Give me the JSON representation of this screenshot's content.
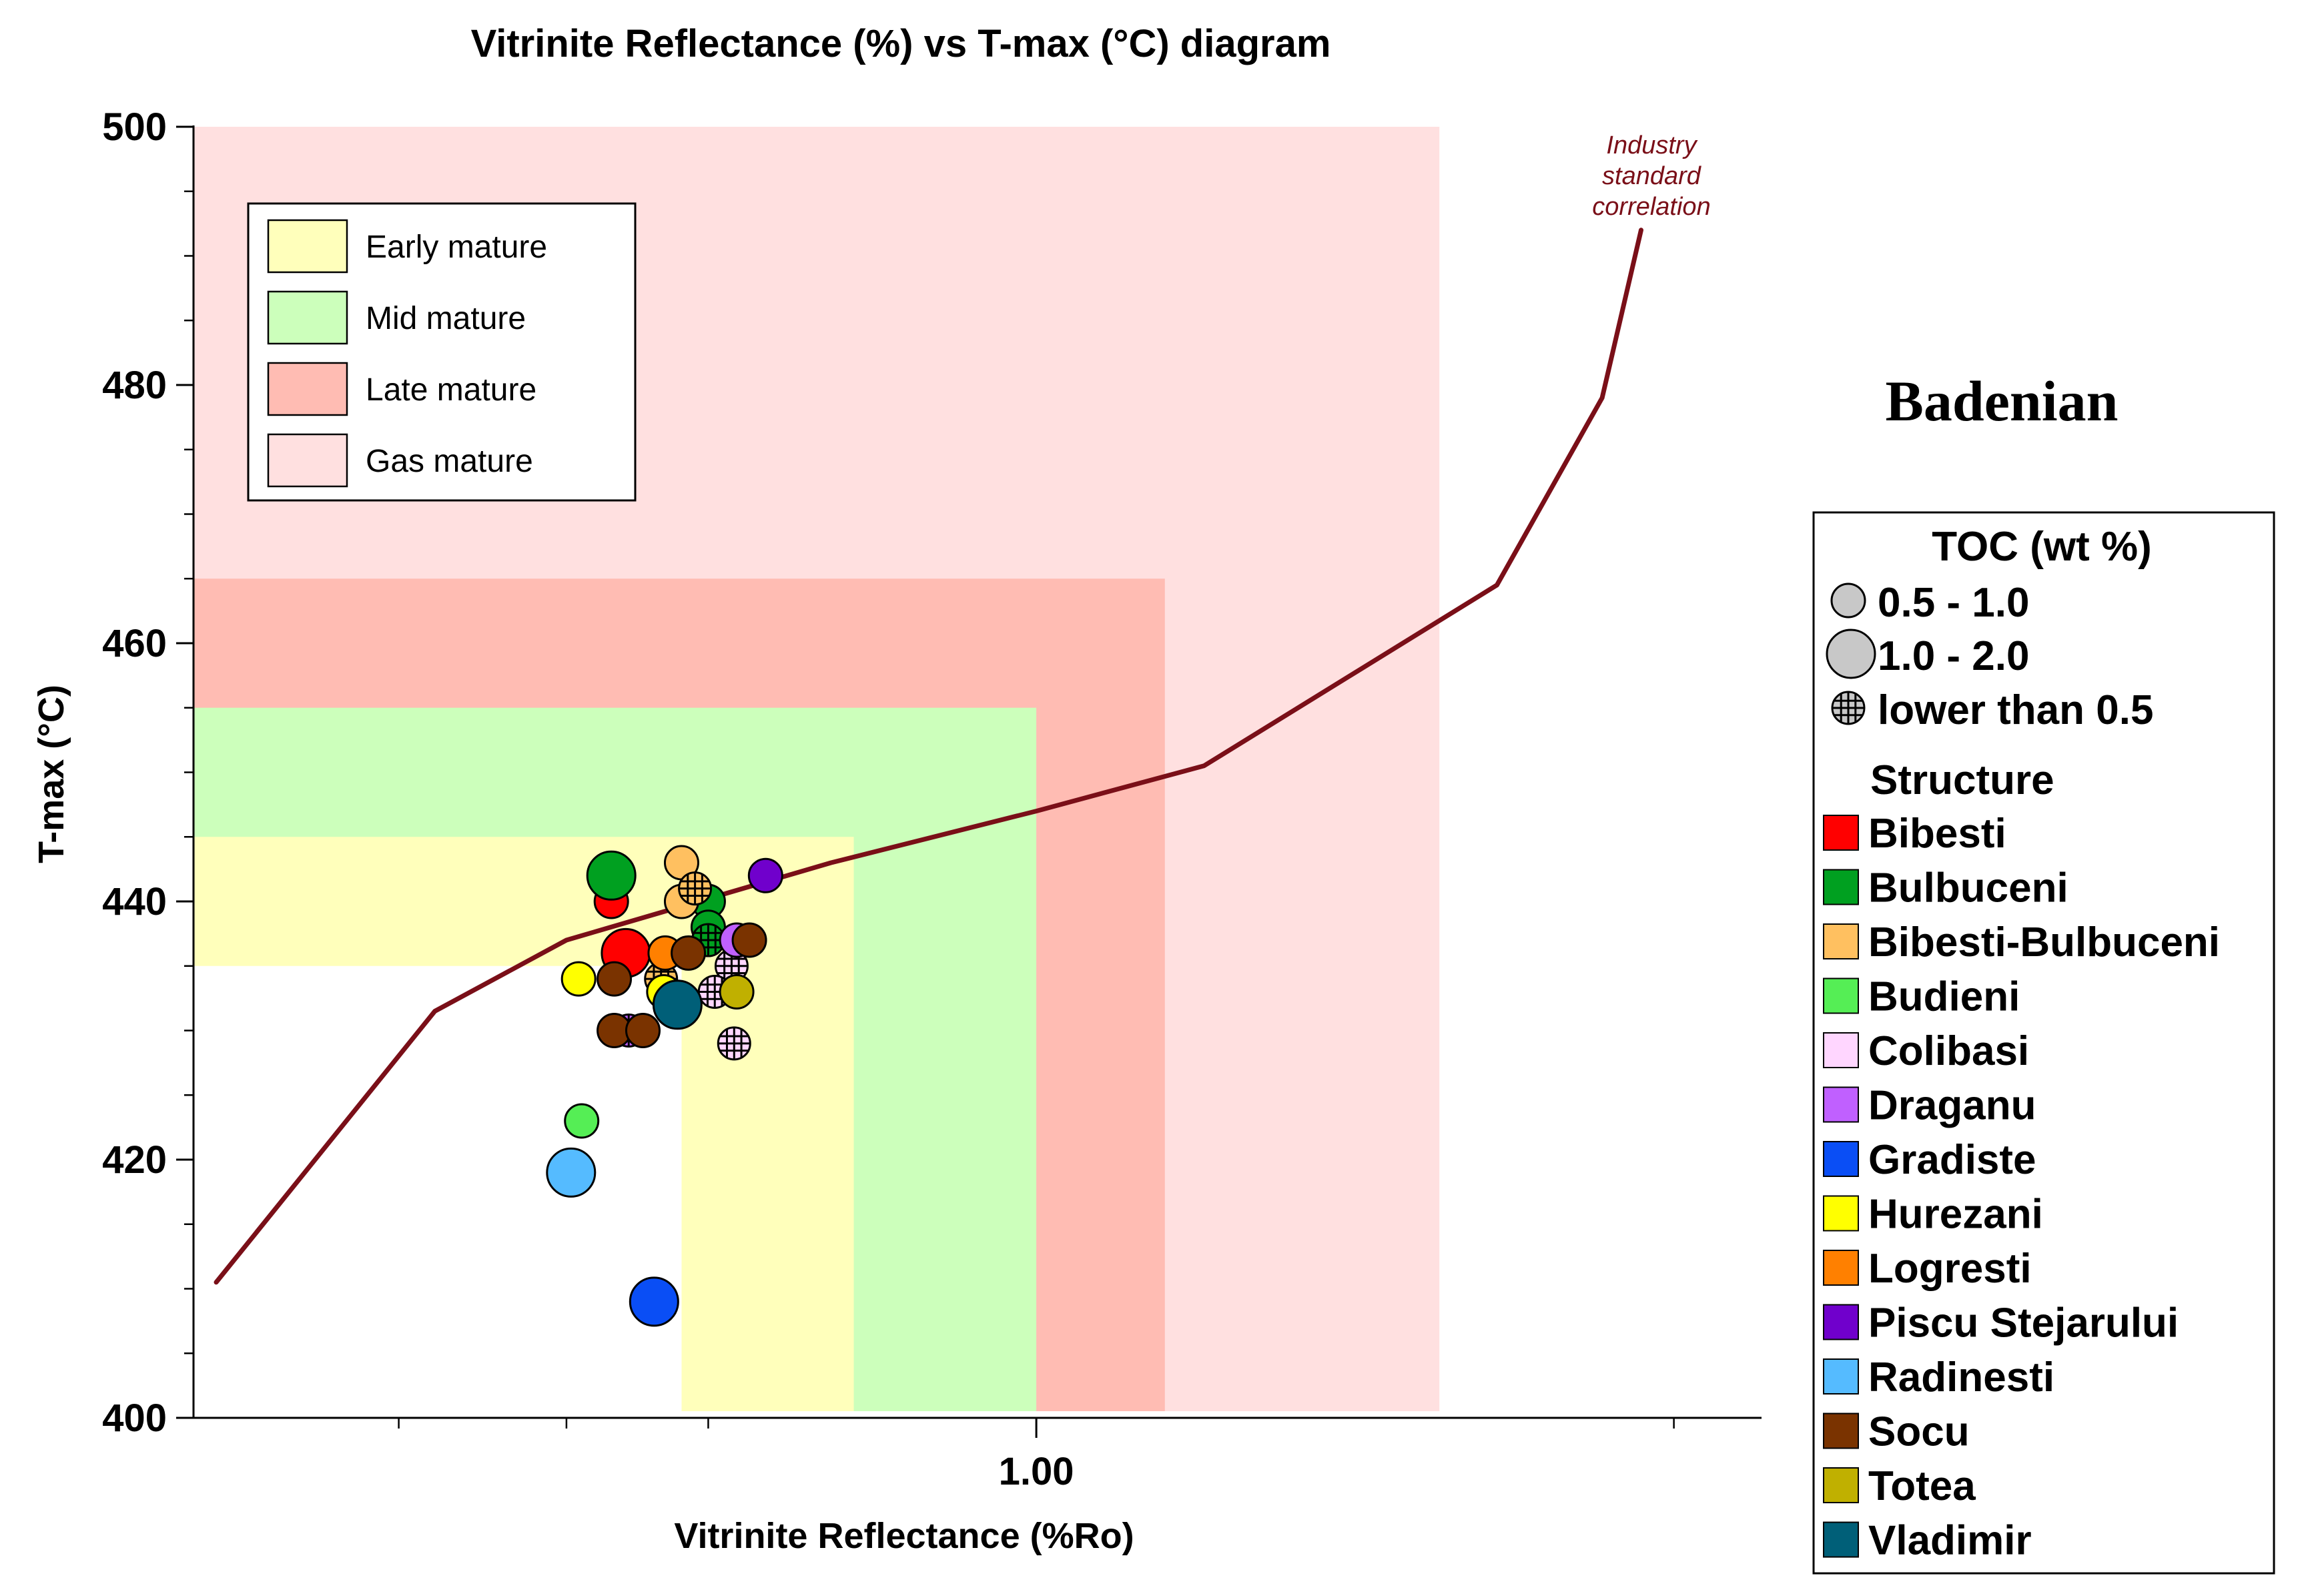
{
  "chart_data": {
    "type": "scatter",
    "title": "Vitrinite Reflectance (%) vs T-max (°C) diagram",
    "xlabel": "Vitrinite Reflectance (%Ro)",
    "ylabel": "T-max (°C)",
    "x_scale": "log",
    "xlim": [
      0.4,
      2.2
    ],
    "ylim": [
      400,
      500
    ],
    "x_ticks": [
      {
        "value": 1.0,
        "label": "1.00"
      }
    ],
    "y_ticks": [
      {
        "value": 400,
        "label": "400"
      },
      {
        "value": 420,
        "label": "420"
      },
      {
        "value": 440,
        "label": "440"
      },
      {
        "value": 460,
        "label": "460"
      },
      {
        "value": 480,
        "label": "480"
      },
      {
        "value": 500,
        "label": "500"
      }
    ],
    "zones": [
      {
        "name": "Gas mature",
        "color": "#ffe0e0",
        "x_range": [
          0.4,
          1.55
        ],
        "tmax_range": [
          400,
          500
        ],
        "inner_x": 1.55
      },
      {
        "name": "Late mature",
        "color": "#ffbcb3",
        "x_range": [
          0.4,
          1.15
        ],
        "tmax_range": [
          400,
          465
        ],
        "inner_x": 1.15
      },
      {
        "name": "Mid mature",
        "color": "#ccffbb",
        "x_range": [
          0.4,
          1.0
        ],
        "tmax_range": [
          400,
          455
        ],
        "inner_x": 1.0
      },
      {
        "name": "Early mature",
        "color": "#ffffbb",
        "x_range": [
          0.4,
          0.82
        ],
        "tmax_range": [
          400,
          445
        ],
        "inner_x": 0.82
      },
      {
        "name": "",
        "color": "#ffffff",
        "x_range": [
          0.4,
          0.68
        ],
        "tmax_range": [
          400,
          435
        ],
        "inner_x": 0.68
      }
    ],
    "legend_zone": [
      "Early mature",
      "Mid mature",
      "Late mature",
      "Gas mature"
    ],
    "correlation": {
      "label_lines": [
        "Industry",
        "standard",
        "correlation"
      ],
      "color": "#7a0f18",
      "points": [
        {
          "x": 0.41,
          "y": 410.5
        },
        {
          "x": 0.52,
          "y": 431.5
        },
        {
          "x": 0.6,
          "y": 437
        },
        {
          "x": 0.8,
          "y": 443
        },
        {
          "x": 1.0,
          "y": 447
        },
        {
          "x": 1.2,
          "y": 450.5
        },
        {
          "x": 1.65,
          "y": 464.5
        },
        {
          "x": 1.85,
          "y": 479
        },
        {
          "x": 1.93,
          "y": 492
        }
      ]
    },
    "series": [
      {
        "name": "Bibesti",
        "color": "#ff0000",
        "points": [
          {
            "x": 0.63,
            "y": 440,
            "toc": "0.5 - 1.0"
          },
          {
            "x": 0.64,
            "y": 436,
            "toc": "1.0 - 2.0"
          }
        ]
      },
      {
        "name": "Bulbuceni",
        "color": "#00a020",
        "points": [
          {
            "x": 0.63,
            "y": 442,
            "toc": "1.0 - 2.0"
          },
          {
            "x": 0.7,
            "y": 440,
            "toc": "0.5 - 1.0"
          },
          {
            "x": 0.7,
            "y": 438,
            "toc": "0.5 - 1.0"
          },
          {
            "x": 0.7,
            "y": 437,
            "toc": "lower than 0.5"
          }
        ]
      },
      {
        "name": "Bibesti-Bulbuceni",
        "color": "#ffc060",
        "points": [
          {
            "x": 0.68,
            "y": 443,
            "toc": "0.5 - 1.0"
          },
          {
            "x": 0.68,
            "y": 440,
            "toc": "0.5 - 1.0"
          },
          {
            "x": 0.69,
            "y": 441,
            "toc": "lower than 0.5"
          },
          {
            "x": 0.665,
            "y": 434,
            "toc": "lower than 0.5"
          }
        ]
      },
      {
        "name": "Budieni",
        "color": "#55ee55",
        "points": [
          {
            "x": 0.61,
            "y": 423,
            "toc": "0.5 - 1.0"
          }
        ]
      },
      {
        "name": "Colibasi",
        "color": "#ffd6ff",
        "points": [
          {
            "x": 0.718,
            "y": 435,
            "toc": "lower than 0.5"
          },
          {
            "x": 0.705,
            "y": 433,
            "toc": "lower than 0.5"
          },
          {
            "x": 0.72,
            "y": 429,
            "toc": "lower than 0.5"
          }
        ]
      },
      {
        "name": "Draganu",
        "color": "#c060ff",
        "points": [
          {
            "x": 0.642,
            "y": 430,
            "toc": "lower than 0.5"
          },
          {
            "x": 0.722,
            "y": 437,
            "toc": "0.5 - 1.0"
          }
        ]
      },
      {
        "name": "Gradiste",
        "color": "#0a4ef5",
        "points": [
          {
            "x": 0.66,
            "y": 409,
            "toc": "1.0 - 2.0"
          }
        ]
      },
      {
        "name": "Hurezani",
        "color": "#ffff00",
        "points": [
          {
            "x": 0.608,
            "y": 434,
            "toc": "0.5 - 1.0"
          },
          {
            "x": 0.667,
            "y": 433,
            "toc": "0.5 - 1.0"
          }
        ]
      },
      {
        "name": "Logresti",
        "color": "#ff8000",
        "points": [
          {
            "x": 0.668,
            "y": 436,
            "toc": "0.5 - 1.0"
          }
        ]
      },
      {
        "name": "Piscu Stejarului",
        "color": "#7000cc",
        "points": [
          {
            "x": 0.745,
            "y": 442,
            "toc": "0.5 - 1.0"
          }
        ]
      },
      {
        "name": "Radinesti",
        "color": "#55bbff",
        "points": [
          {
            "x": 0.603,
            "y": 419,
            "toc": "1.0 - 2.0"
          }
        ]
      },
      {
        "name": "Socu",
        "color": "#7a3300",
        "points": [
          {
            "x": 0.632,
            "y": 434,
            "toc": "0.5 - 1.0"
          },
          {
            "x": 0.632,
            "y": 430,
            "toc": "0.5 - 1.0"
          },
          {
            "x": 0.652,
            "y": 430,
            "toc": "0.5 - 1.0"
          },
          {
            "x": 0.685,
            "y": 436,
            "toc": "0.5 - 1.0"
          },
          {
            "x": 0.732,
            "y": 437,
            "toc": "0.5 - 1.0"
          }
        ]
      },
      {
        "name": "Totea",
        "color": "#c0b000",
        "points": [
          {
            "x": 0.722,
            "y": 433,
            "toc": "0.5 - 1.0"
          }
        ]
      },
      {
        "name": "Vladimir",
        "color": "#005f78",
        "points": [
          {
            "x": 0.677,
            "y": 432,
            "toc": "1.0 - 2.0"
          }
        ]
      }
    ],
    "right_legend": {
      "heading": "Badenian",
      "toc_title": "TOC (wt %)",
      "toc_classes": [
        "0.5 - 1.0",
        "1.0 - 2.0",
        "lower than 0.5"
      ],
      "structure_title": "Structure"
    }
  }
}
